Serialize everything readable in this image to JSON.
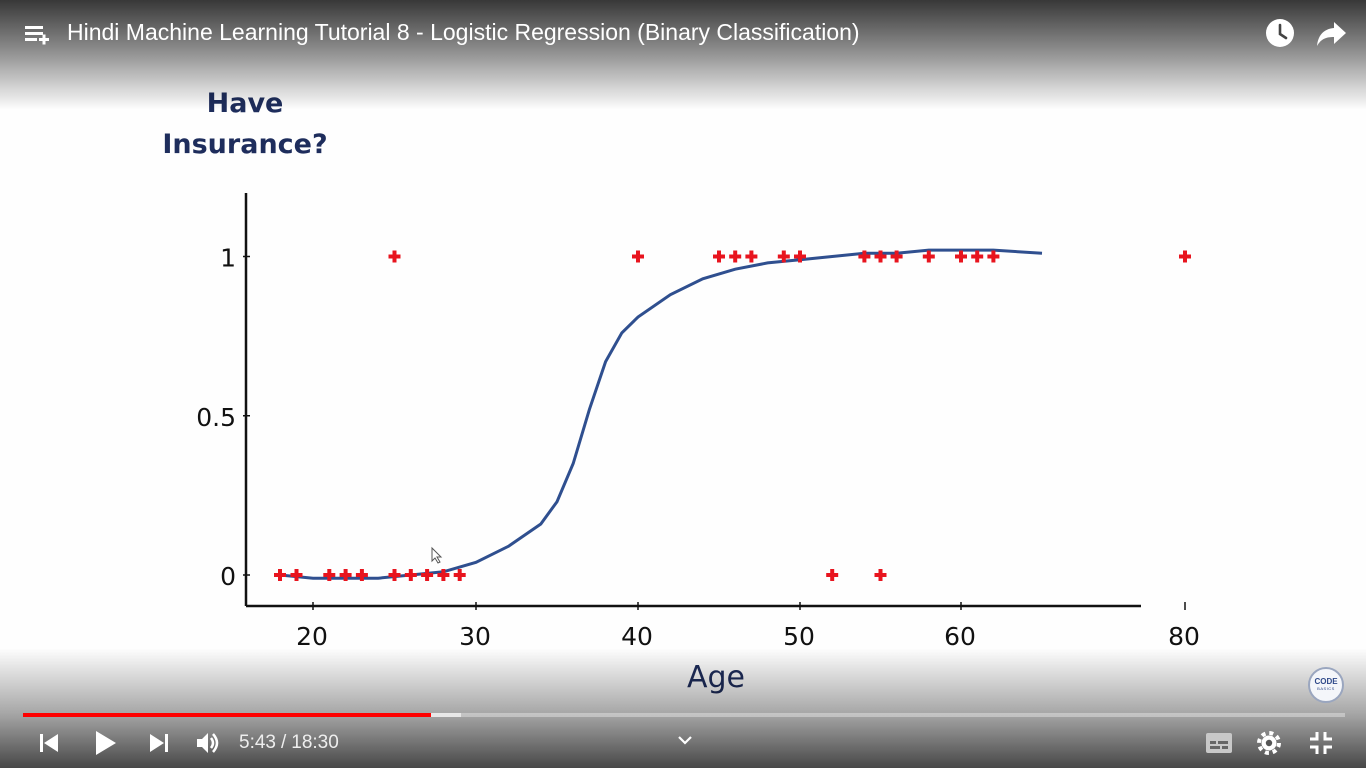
{
  "player": {
    "title": "Hindi Machine Learning Tutorial 8 - Logistic Regression (Binary Classification)",
    "current_time": "5:43",
    "separator": "/",
    "duration": "18:30",
    "progress_fraction": 0.309,
    "buffered_fraction": 0.331,
    "accent_color": "#ff0000",
    "icons": {
      "playlist": "playlist-icon",
      "watch_later": "clock-icon",
      "share": "share-icon",
      "previous": "skip-previous-icon",
      "play": "play-icon",
      "next": "skip-next-icon",
      "volume": "volume-icon",
      "chevron": "chevron-down-icon",
      "subtitles": "subtitles-icon",
      "settings": "gear-icon",
      "exit_fullscreen": "exit-fullscreen-icon"
    }
  },
  "watermark": {
    "line1": "CODE",
    "line2": "BASICS"
  },
  "chart_data": {
    "type": "scatter",
    "title": "",
    "ylabel": "Have Insurance?",
    "xlabel": "Age",
    "y_ticks": [
      0,
      0.5,
      1
    ],
    "y_tick_labels": [
      "0",
      "0.5",
      "1"
    ],
    "x_ticks": [
      20,
      30,
      40,
      50,
      60,
      80
    ],
    "x_tick_labels": [
      "20",
      "30",
      "40",
      "50",
      "60",
      "80"
    ],
    "point_color": "#e8141e",
    "curve_color": "#2f4f8f",
    "points": [
      {
        "x": 18,
        "y": 0
      },
      {
        "x": 19,
        "y": 0
      },
      {
        "x": 21,
        "y": 0
      },
      {
        "x": 22,
        "y": 0
      },
      {
        "x": 23,
        "y": 0
      },
      {
        "x": 25,
        "y": 0
      },
      {
        "x": 26,
        "y": 0
      },
      {
        "x": 27,
        "y": 0
      },
      {
        "x": 28,
        "y": 0
      },
      {
        "x": 29,
        "y": 0
      },
      {
        "x": 25,
        "y": 1
      },
      {
        "x": 40,
        "y": 1
      },
      {
        "x": 45,
        "y": 1
      },
      {
        "x": 46,
        "y": 1
      },
      {
        "x": 47,
        "y": 1
      },
      {
        "x": 49,
        "y": 1
      },
      {
        "x": 50,
        "y": 1
      },
      {
        "x": 52,
        "y": 0
      },
      {
        "x": 54,
        "y": 1
      },
      {
        "x": 55,
        "y": 1
      },
      {
        "x": 55,
        "y": 0
      },
      {
        "x": 56,
        "y": 1
      },
      {
        "x": 58,
        "y": 1
      },
      {
        "x": 60,
        "y": 1
      },
      {
        "x": 61,
        "y": 1
      },
      {
        "x": 62,
        "y": 1
      },
      {
        "x": 80,
        "y": 1
      }
    ],
    "curve": {
      "type": "sigmoid",
      "x": [
        18,
        20,
        22,
        24,
        26,
        28,
        30,
        32,
        34,
        35,
        36,
        37,
        38,
        39,
        40,
        42,
        44,
        46,
        48,
        50,
        52,
        54,
        56,
        58,
        60,
        62,
        65
      ],
      "y": [
        0.0,
        -0.01,
        -0.01,
        -0.01,
        0.0,
        0.01,
        0.04,
        0.09,
        0.16,
        0.23,
        0.35,
        0.52,
        0.67,
        0.76,
        0.81,
        0.88,
        0.93,
        0.96,
        0.98,
        0.99,
        1.0,
        1.01,
        1.01,
        1.02,
        1.02,
        1.02,
        1.01
      ]
    }
  }
}
